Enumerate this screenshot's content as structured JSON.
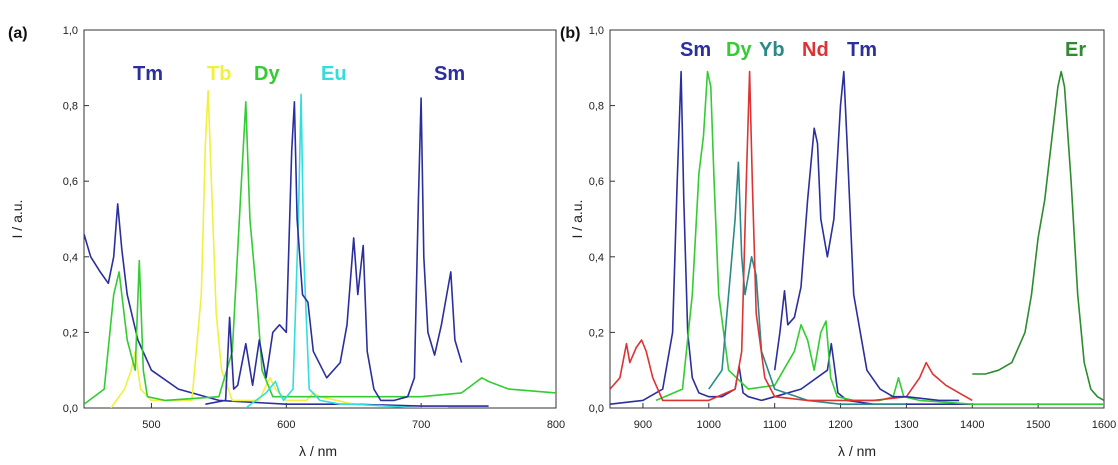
{
  "chart_data": [
    {
      "type": "line",
      "panel_label": "(a)",
      "xlabel": "λ / nm",
      "ylabel": "I / a.u.",
      "xlim": [
        450,
        800
      ],
      "ylim": [
        0,
        1.0
      ],
      "x_ticks": [
        "500",
        "600",
        "700",
        "800"
      ],
      "y_ticks": [
        "0,0",
        "0,2",
        "0,4",
        "0,6",
        "0,8",
        "1,0"
      ],
      "grid": false,
      "series": [
        {
          "name": "Tm",
          "color": "#2b2f9e",
          "x": [
            450,
            455,
            462,
            468,
            472,
            475,
            478,
            482,
            490,
            500,
            520,
            550,
            600,
            650,
            700,
            750
          ],
          "y": [
            0.46,
            0.4,
            0.36,
            0.33,
            0.4,
            0.54,
            0.42,
            0.3,
            0.18,
            0.1,
            0.05,
            0.02,
            0.01,
            0.01,
            0.005,
            0.005
          ]
        },
        {
          "name": "Tb",
          "color": "#f0f040",
          "x": [
            470,
            480,
            485,
            488,
            492,
            500,
            530,
            537,
            540,
            542,
            545,
            548,
            552,
            560,
            580,
            585,
            588,
            592,
            600,
            615,
            620,
            625,
            650
          ],
          "y": [
            0.0,
            0.05,
            0.1,
            0.15,
            0.05,
            0.02,
            0.02,
            0.3,
            0.7,
            0.84,
            0.55,
            0.25,
            0.1,
            0.02,
            0.02,
            0.06,
            0.08,
            0.05,
            0.02,
            0.02,
            0.04,
            0.03,
            0.01
          ]
        },
        {
          "name": "Dy",
          "color": "#33cc33",
          "x": [
            450,
            465,
            472,
            476,
            482,
            488,
            491,
            494,
            497,
            510,
            550,
            560,
            566,
            570,
            573,
            578,
            582,
            590,
            620,
            660,
            700,
            730,
            745,
            750,
            765,
            800
          ],
          "y": [
            0.01,
            0.05,
            0.3,
            0.36,
            0.18,
            0.1,
            0.39,
            0.1,
            0.03,
            0.02,
            0.03,
            0.15,
            0.55,
            0.81,
            0.5,
            0.3,
            0.1,
            0.03,
            0.03,
            0.03,
            0.03,
            0.04,
            0.08,
            0.07,
            0.05,
            0.04
          ]
        },
        {
          "name": "Eu",
          "color": "#33dddd",
          "x": [
            570,
            585,
            592,
            595,
            598,
            605,
            609,
            611,
            613,
            617,
            625,
            640,
            650,
            700,
            720
          ],
          "y": [
            0.0,
            0.04,
            0.07,
            0.04,
            0.02,
            0.05,
            0.5,
            0.83,
            0.4,
            0.05,
            0.02,
            0.01,
            0.01,
            0.0,
            0.0
          ]
        },
        {
          "name": "Sm",
          "color": "#2b2f9e",
          "x": [
            540,
            555,
            558,
            561,
            564,
            570,
            575,
            580,
            585,
            590,
            595,
            600,
            604,
            606,
            608,
            612,
            616,
            620,
            630,
            640,
            645,
            650,
            653,
            657,
            660,
            665,
            670,
            680,
            690,
            695,
            698,
            700,
            702,
            705,
            710,
            715,
            720,
            722,
            725,
            730
          ],
          "y": [
            0.01,
            0.02,
            0.24,
            0.05,
            0.06,
            0.17,
            0.06,
            0.18,
            0.08,
            0.2,
            0.22,
            0.2,
            0.68,
            0.81,
            0.5,
            0.3,
            0.28,
            0.15,
            0.08,
            0.12,
            0.22,
            0.45,
            0.3,
            0.43,
            0.15,
            0.05,
            0.02,
            0.02,
            0.03,
            0.08,
            0.55,
            0.82,
            0.4,
            0.2,
            0.14,
            0.22,
            0.32,
            0.36,
            0.18,
            0.12
          ]
        }
      ]
    },
    {
      "type": "line",
      "panel_label": "(b)",
      "xlabel": "λ / nm",
      "ylabel": "I / a.u.",
      "xlim": [
        850,
        1600
      ],
      "ylim": [
        0,
        1.0
      ],
      "x_ticks": [
        "900",
        "1000",
        "1100",
        "1200",
        "1300",
        "1400",
        "1500",
        "1600"
      ],
      "y_ticks": [
        "0,0",
        "0,2",
        "0,4",
        "0,6",
        "0,8",
        "1,0"
      ],
      "grid": false,
      "series": [
        {
          "name": "Sm",
          "color": "#2b2f9e",
          "x": [
            850,
            900,
            930,
            945,
            952,
            958,
            962,
            968,
            975,
            985,
            1000,
            1020,
            1040,
            1046,
            1052,
            1060,
            1080,
            1100,
            1140,
            1180,
            1186,
            1190,
            1196,
            1210,
            1250,
            1300,
            1350,
            1400
          ],
          "y": [
            0.01,
            0.02,
            0.05,
            0.2,
            0.6,
            0.89,
            0.55,
            0.2,
            0.08,
            0.04,
            0.03,
            0.03,
            0.05,
            0.11,
            0.04,
            0.03,
            0.02,
            0.03,
            0.05,
            0.1,
            0.17,
            0.12,
            0.04,
            0.02,
            0.01,
            0.01,
            0.01,
            0.01
          ]
        },
        {
          "name": "Dy",
          "color": "#33cc33",
          "x": [
            920,
            960,
            975,
            985,
            992,
            998,
            1003,
            1008,
            1015,
            1030,
            1060,
            1100,
            1130,
            1140,
            1150,
            1160,
            1170,
            1178,
            1185,
            1195,
            1220,
            1260,
            1280,
            1288,
            1296,
            1320,
            1400,
            1500,
            1600
          ],
          "y": [
            0.02,
            0.05,
            0.3,
            0.62,
            0.72,
            0.89,
            0.85,
            0.6,
            0.3,
            0.1,
            0.05,
            0.06,
            0.15,
            0.22,
            0.18,
            0.1,
            0.2,
            0.23,
            0.08,
            0.03,
            0.02,
            0.02,
            0.03,
            0.08,
            0.03,
            0.02,
            0.01,
            0.01,
            0.01
          ]
        },
        {
          "name": "Yb",
          "color": "#2a8a8a",
          "x": [
            1000,
            1020,
            1035,
            1040,
            1045,
            1050,
            1055,
            1060,
            1065,
            1072,
            1080,
            1100,
            1150,
            1200,
            1250,
            1300
          ],
          "y": [
            0.05,
            0.1,
            0.4,
            0.5,
            0.65,
            0.4,
            0.3,
            0.35,
            0.4,
            0.35,
            0.15,
            0.05,
            0.02,
            0.01,
            0.01,
            0.01
          ]
        },
        {
          "name": "Nd",
          "color": "#dd3333",
          "x": [
            850,
            865,
            875,
            880,
            890,
            898,
            905,
            915,
            930,
            960,
            1000,
            1040,
            1050,
            1057,
            1062,
            1066,
            1072,
            1085,
            1100,
            1150,
            1250,
            1300,
            1320,
            1330,
            1340,
            1360,
            1380,
            1400
          ],
          "y": [
            0.05,
            0.08,
            0.17,
            0.12,
            0.16,
            0.18,
            0.15,
            0.08,
            0.02,
            0.02,
            0.02,
            0.05,
            0.15,
            0.6,
            0.89,
            0.6,
            0.25,
            0.08,
            0.03,
            0.02,
            0.02,
            0.03,
            0.08,
            0.12,
            0.09,
            0.06,
            0.04,
            0.02
          ]
        },
        {
          "name": "Tm",
          "color": "#2b2f9e",
          "x": [
            1100,
            1108,
            1115,
            1120,
            1130,
            1140,
            1150,
            1160,
            1165,
            1170,
            1180,
            1190,
            1200,
            1205,
            1210,
            1220,
            1240,
            1260,
            1280,
            1300,
            1350,
            1380
          ],
          "y": [
            0.1,
            0.2,
            0.31,
            0.22,
            0.24,
            0.32,
            0.55,
            0.74,
            0.7,
            0.5,
            0.4,
            0.5,
            0.8,
            0.89,
            0.7,
            0.3,
            0.1,
            0.05,
            0.03,
            0.03,
            0.02,
            0.02
          ]
        },
        {
          "name": "Er",
          "color": "#2e8b2e",
          "x": [
            1400,
            1420,
            1440,
            1460,
            1480,
            1490,
            1500,
            1510,
            1520,
            1530,
            1535,
            1540,
            1550,
            1560,
            1570,
            1580,
            1590,
            1600
          ],
          "y": [
            0.09,
            0.09,
            0.1,
            0.12,
            0.2,
            0.3,
            0.45,
            0.55,
            0.7,
            0.85,
            0.89,
            0.85,
            0.6,
            0.3,
            0.12,
            0.05,
            0.03,
            0.02
          ]
        }
      ]
    }
  ]
}
